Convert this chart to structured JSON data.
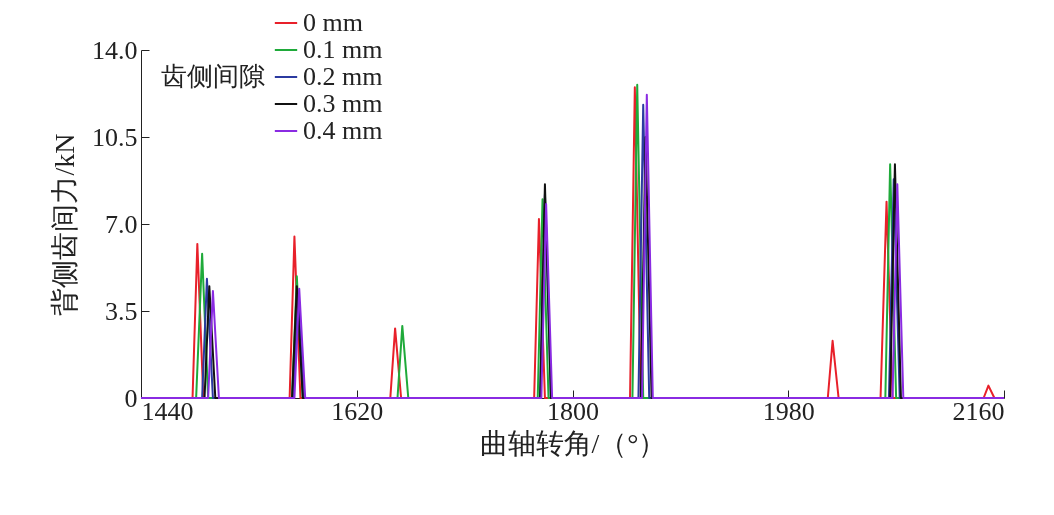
{
  "chart_data": {
    "type": "line",
    "xlabel": "曲轴转角/（°）",
    "ylabel": "背侧齿间力/kN",
    "legend_title": "齿侧间隙",
    "legend": "top left",
    "grid": false,
    "marker": "none",
    "line_style": "solid",
    "xlim": [
      1440,
      2160
    ],
    "xticks": [
      1440,
      1620,
      1800,
      1980,
      2160
    ],
    "ylim": [
      0,
      14
    ],
    "yticks": [
      0,
      {
        "value": 3.5,
        "label": "3.5"
      },
      {
        "value": 7,
        "label": "7.0"
      },
      {
        "value": 10.5,
        "label": "10.5"
      },
      {
        "value": 14,
        "label": "14.0"
      }
    ],
    "series": [
      {
        "name": "0  mm",
        "color": "#e8202a",
        "x": [
          1440,
          1483,
          1487,
          1492,
          1564,
          1568,
          1573,
          1648,
          1652,
          1657,
          1768,
          1772,
          1777,
          1848,
          1852,
          1857,
          2013,
          2017,
          2022,
          2057,
          2062,
          2067,
          2143,
          2147,
          2152,
          2160
        ],
        "values": [
          0,
          0,
          6.2,
          0,
          0,
          6.5,
          0,
          0,
          2.8,
          0,
          0,
          7.2,
          0,
          0,
          12.5,
          0,
          0,
          2.3,
          0,
          0,
          7.9,
          0,
          0,
          0.5,
          0,
          0
        ]
      },
      {
        "name": "0.1 mm",
        "color": "#1faa3a",
        "x": [
          1440,
          1486,
          1491,
          1496,
          1566,
          1570,
          1575,
          1654,
          1658,
          1663,
          1771,
          1775,
          1780,
          1850,
          1854,
          1859,
          2061,
          2065,
          2070,
          2160
        ],
        "values": [
          0,
          0,
          5.8,
          0,
          0,
          4.9,
          0,
          0,
          2.9,
          0,
          0,
          8.0,
          0,
          0,
          12.6,
          0,
          0,
          9.4,
          0,
          0
        ]
      },
      {
        "name": "0.2 mm",
        "color": "#2b3aa0",
        "x": [
          1440,
          1491,
          1495,
          1500,
          1567,
          1571,
          1576,
          1773,
          1777,
          1782,
          1855,
          1859,
          1864,
          2064,
          2068,
          2073,
          2160
        ],
        "values": [
          0,
          0,
          4.8,
          0,
          0,
          4.0,
          0,
          0,
          8.2,
          0,
          0,
          11.8,
          0,
          0,
          8.8,
          0,
          0
        ]
      },
      {
        "name": "0.3 mm",
        "color": "#111111",
        "x": [
          1440,
          1493,
          1497,
          1502,
          1566,
          1570,
          1575,
          1773,
          1777,
          1782,
          1857,
          1861,
          1866,
          2065,
          2069,
          2074,
          2160
        ],
        "values": [
          0,
          0,
          4.5,
          0,
          0,
          4.5,
          0,
          0,
          8.6,
          0,
          0,
          10.5,
          0,
          0,
          9.4,
          0,
          0
        ]
      },
      {
        "name": "0.4 mm",
        "color": "#8a2be2",
        "x": [
          1440,
          1496,
          1500,
          1505,
          1568,
          1572,
          1577,
          1774,
          1778,
          1783,
          1858,
          1862,
          1867,
          2067,
          2071,
          2076,
          2160
        ],
        "values": [
          0,
          0,
          4.3,
          0,
          0,
          4.4,
          0,
          0,
          7.8,
          0,
          0,
          12.2,
          0,
          0,
          8.6,
          0,
          0
        ]
      }
    ]
  }
}
